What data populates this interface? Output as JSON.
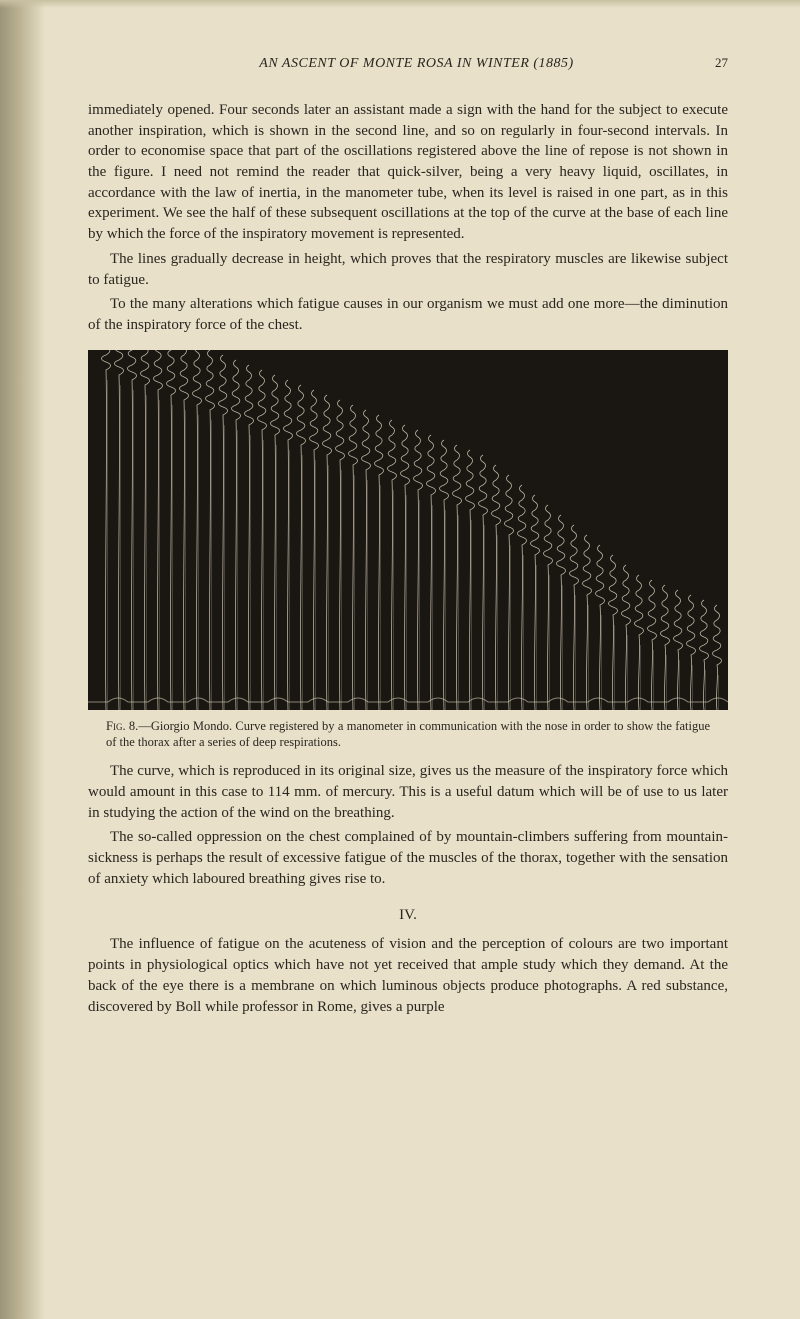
{
  "header": {
    "title": "AN ASCENT OF MONTE ROSA IN WINTER (1885)",
    "page_number": "27"
  },
  "paragraphs": {
    "p1": "immediately opened. Four seconds later an assistant made a sign with the hand for the subject to execute another inspiration, which is shown in the second line, and so on regularly in four-second intervals. In order to economise space that part of the oscillations registered above the line of repose is not shown in the figure. I need not remind the reader that quick-silver, being a very heavy liquid, oscillates, in accordance with the law of inertia, in the manometer tube, when its level is raised in one part, as in this experiment. We see the half of these subsequent oscillations at the top of the curve at the base of each line by which the force of the inspiratory movement is represented.",
    "p2": "The lines gradually decrease in height, which proves that the respiratory muscles are likewise subject to fatigue.",
    "p3": "To the many alterations which fatigue causes in our organism we must add one more—the diminution of the inspiratory force of the chest.",
    "p4": "The curve, which is reproduced in its original size, gives us the measure of the inspiratory force which would amount in this case to 114 mm. of mercury. This is a useful datum which will be of use to us later in studying the action of the wind on the breathing.",
    "p5": "The so-called oppression on the chest complained of by mountain-climbers suffering from mountain-sickness is perhaps the result of excessive fatigue of the muscles of the thorax, together with the sensation of anxiety which laboured breathing gives rise to.",
    "p6": "The influence of fatigue on the acuteness of vision and the perception of colours are two important points in physiological optics which have not yet received that ample study which they demand. At the back of the eye there is a membrane on which luminous objects produce photographs. A red substance, discovered by Boll while professor in Rome, gives a purple"
  },
  "figure": {
    "caption_label": "Fig. 8.",
    "caption_text": "—Giorgio Mondo. Curve registered by a manometer in communication with the nose in order to show the fatigue of the thorax after a series of deep respirations.",
    "chart": {
      "type": "manometer-curve",
      "background_color": "#1a1612",
      "stroke_color": "#d8d0b8",
      "stroke_width": 0.8,
      "curve_count": 48,
      "curve_spacing": 13,
      "base_heights": [
        340,
        335,
        330,
        325,
        320,
        315,
        310,
        305,
        300,
        295,
        290,
        285,
        280,
        275,
        270,
        265,
        260,
        255,
        250,
        245,
        240,
        235,
        230,
        225,
        220,
        215,
        210,
        205,
        200,
        195,
        185,
        175,
        165,
        155,
        145,
        135,
        125,
        115,
        105,
        95,
        85,
        75,
        70,
        65,
        60,
        55,
        50,
        45
      ],
      "oscillation_amplitude": 6,
      "oscillation_count": 4,
      "bottom_wave": true
    }
  },
  "section": {
    "number": "IV."
  }
}
